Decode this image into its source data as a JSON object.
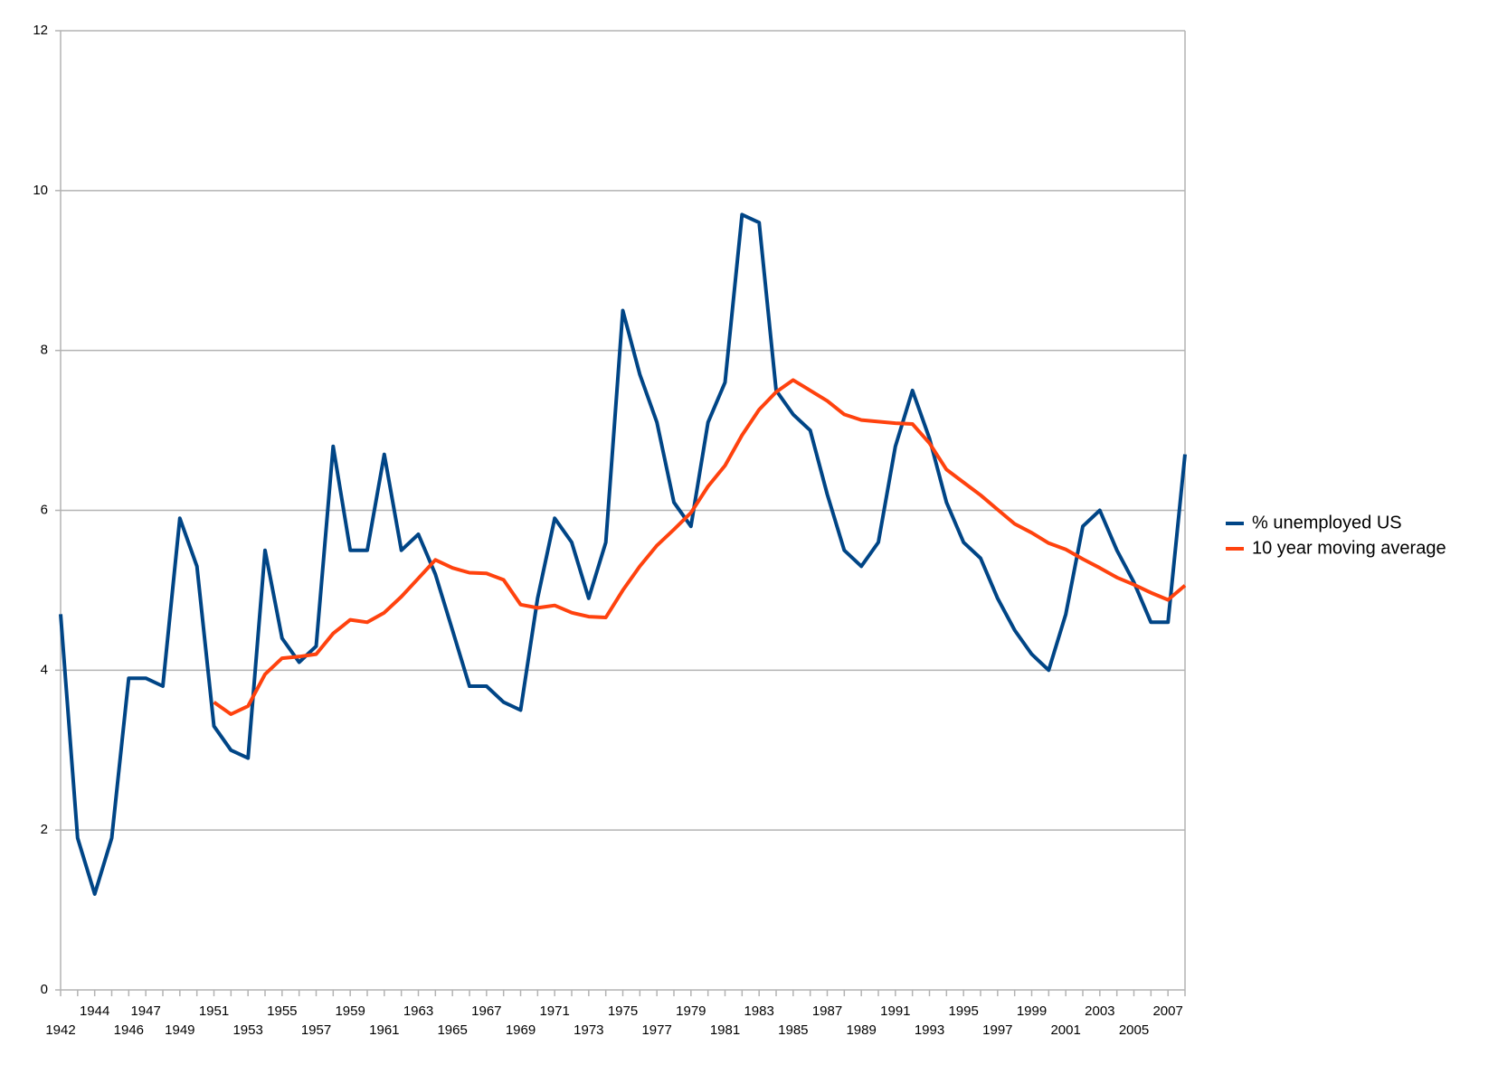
{
  "chart_data": {
    "type": "line",
    "categories": [
      "1942",
      null,
      "1944",
      null,
      "1946",
      "1947",
      null,
      "1949",
      null,
      "1951",
      null,
      "1953",
      null,
      "1955",
      null,
      "1957",
      null,
      "1959",
      null,
      "1961",
      null,
      "1963",
      null,
      "1965",
      null,
      "1967",
      null,
      "1969",
      null,
      "1971",
      null,
      "1973",
      null,
      "1975",
      null,
      "1977",
      null,
      "1979",
      null,
      "1981",
      null,
      "1983",
      null,
      "1985",
      null,
      "1987",
      null,
      "1989",
      null,
      "1991",
      null,
      "1993",
      null,
      "1995",
      null,
      "1997",
      null,
      "1999",
      null,
      "2001",
      null,
      "2003",
      null,
      "2005",
      null,
      "2007",
      null
    ],
    "series": [
      {
        "name": "% unemployed US",
        "color": "#004586",
        "values": [
          4.7,
          1.9,
          1.2,
          1.9,
          3.9,
          3.9,
          3.8,
          5.9,
          5.3,
          3.3,
          3.0,
          2.9,
          5.5,
          4.4,
          4.1,
          4.3,
          6.8,
          5.5,
          5.5,
          6.7,
          5.5,
          5.7,
          5.2,
          4.5,
          3.8,
          3.8,
          3.6,
          3.5,
          4.9,
          5.9,
          5.6,
          4.9,
          5.6,
          8.5,
          7.7,
          7.1,
          6.1,
          5.8,
          7.1,
          7.6,
          9.7,
          9.6,
          7.5,
          7.2,
          7.0,
          6.2,
          5.5,
          5.3,
          5.6,
          6.8,
          7.5,
          6.9,
          6.1,
          5.6,
          5.4,
          4.9,
          4.5,
          4.2,
          4.0,
          4.7,
          5.8,
          6.0,
          5.5,
          5.1,
          4.6,
          4.6,
          6.7
        ]
      },
      {
        "name": "10 year moving average",
        "color": "#ff420e",
        "values": [
          null,
          null,
          null,
          null,
          null,
          null,
          null,
          null,
          null,
          3.6,
          3.45,
          3.55,
          3.95,
          4.15,
          4.17,
          4.2,
          4.46,
          4.63,
          4.6,
          4.72,
          4.92,
          5.15,
          5.38,
          5.28,
          5.22,
          5.21,
          5.13,
          4.82,
          4.78,
          4.81,
          4.72,
          4.67,
          4.66,
          5.0,
          5.3,
          5.56,
          5.76,
          5.97,
          6.3,
          6.56,
          6.94,
          7.26,
          7.48,
          7.63,
          7.5,
          7.37,
          7.2,
          7.13,
          7.11,
          7.09,
          7.08,
          6.84,
          6.51,
          6.35,
          6.19,
          6.01,
          5.83,
          5.72,
          5.59,
          5.51,
          5.39,
          5.28,
          5.16,
          5.07,
          4.97,
          4.88,
          5.06
        ]
      }
    ],
    "ylim": [
      0,
      12
    ],
    "yticks": [
      0,
      2,
      4,
      6,
      8,
      10,
      12
    ],
    "grid": true,
    "legend": "right"
  }
}
